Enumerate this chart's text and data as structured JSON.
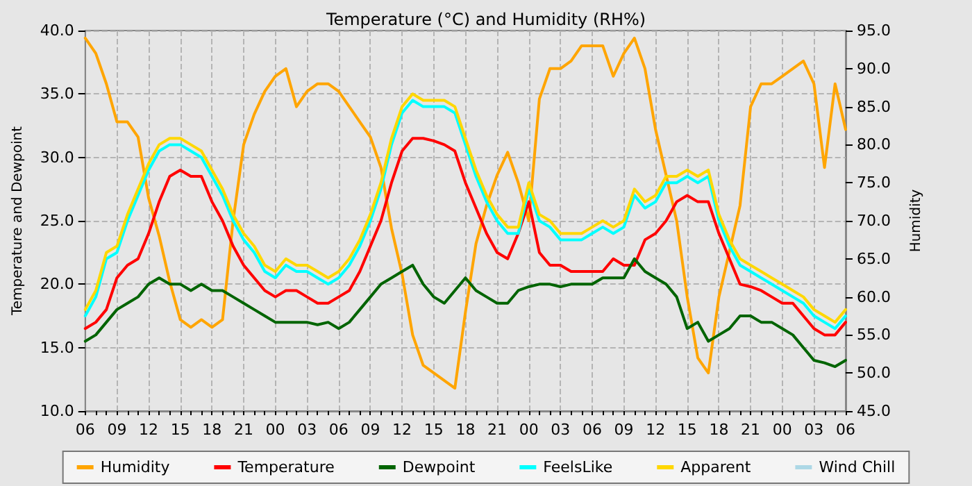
{
  "chart_data": {
    "type": "line",
    "title": "Temperature (°C) and Humidity (RH%)",
    "ylabel": "Temperature and Dewpoint",
    "y2label": "Humidity",
    "categories": [
      "06",
      null,
      null,
      "09",
      null,
      null,
      "12",
      null,
      null,
      "15",
      null,
      null,
      "18",
      null,
      null,
      "21",
      null,
      null,
      "00",
      null,
      null,
      "03",
      null,
      null,
      "06",
      null,
      null,
      "09",
      null,
      null,
      "12",
      null,
      null,
      "15",
      null,
      null,
      "18",
      null,
      null,
      "21",
      null,
      null,
      "00",
      null,
      null,
      "03",
      null,
      null,
      "06",
      null,
      null,
      "09",
      null,
      null,
      "12",
      null,
      null,
      "15",
      null,
      null,
      "18",
      null,
      null,
      "21",
      null,
      null,
      "00",
      null,
      null,
      "03",
      null,
      null,
      "06"
    ],
    "ylim": [
      10,
      40
    ],
    "yticks": [
      {
        "value": 10,
        "label": "10.0"
      },
      {
        "value": 15,
        "label": "15.0"
      },
      {
        "value": 20,
        "label": "20.0"
      },
      {
        "value": 25,
        "label": "25.0"
      },
      {
        "value": 30,
        "label": "30.0"
      },
      {
        "value": 35,
        "label": "35.0"
      },
      {
        "value": 40,
        "label": "40.0"
      }
    ],
    "y2lim": [
      45,
      95
    ],
    "y2ticks": [
      {
        "value": 45,
        "label": "45.0"
      },
      {
        "value": 50,
        "label": "50.0"
      },
      {
        "value": 55,
        "label": "55.0"
      },
      {
        "value": 60,
        "label": "60.0"
      },
      {
        "value": 65,
        "label": "65.0"
      },
      {
        "value": 70,
        "label": "70.0"
      },
      {
        "value": 75,
        "label": "75.0"
      },
      {
        "value": 80,
        "label": "80.0"
      },
      {
        "value": 85,
        "label": "85.0"
      },
      {
        "value": 90,
        "label": "90.0"
      },
      {
        "value": 95,
        "label": "95.0"
      }
    ],
    "grid": true,
    "legend": "bottom",
    "marker": "none",
    "line_style": "solid",
    "series": [
      {
        "name": "Humidity",
        "color": "#ffa500",
        "axis": "y2",
        "values": [
          94,
          92,
          88,
          83,
          83,
          81,
          73,
          68,
          62,
          57,
          56,
          57,
          56,
          57,
          70,
          80,
          84,
          87,
          89,
          90,
          85,
          87,
          88,
          88,
          87,
          85,
          83,
          81,
          77,
          69,
          63,
          55,
          51,
          50,
          49,
          48,
          58,
          67,
          72,
          76,
          79,
          75,
          70,
          86,
          90,
          90,
          91,
          93,
          93,
          93,
          89,
          92,
          94,
          90,
          82,
          76,
          70,
          60,
          52,
          50,
          60,
          66,
          72,
          85,
          88,
          88,
          89,
          90,
          91,
          88,
          77,
          88,
          82
        ]
      },
      {
        "name": "Temperature",
        "color": "#ff0000",
        "values": [
          16.5,
          17,
          18,
          20.5,
          21.5,
          22,
          24,
          26.5,
          28.5,
          29,
          28.5,
          28.5,
          26.5,
          25,
          23,
          21.5,
          20.5,
          19.5,
          19,
          19.5,
          19.5,
          19,
          18.5,
          18.5,
          19,
          19.5,
          21,
          23,
          25,
          28,
          30.5,
          31.5,
          31.5,
          31.3,
          31,
          30.5,
          28,
          26,
          24,
          22.5,
          22,
          24,
          26.5,
          22.5,
          21.5,
          21.5,
          21,
          21,
          21,
          21,
          22,
          21.5,
          21.5,
          23.5,
          24,
          25,
          26.5,
          27,
          26.5,
          26.5,
          24,
          22,
          20,
          19.8,
          19.5,
          19,
          18.5,
          18.5,
          17.5,
          16.5,
          16,
          16,
          17
        ]
      },
      {
        "name": "Dewpoint",
        "color": "#006400",
        "values": [
          15.5,
          16,
          17,
          18,
          18.5,
          19,
          20,
          20.5,
          20,
          20,
          19.5,
          20,
          19.5,
          19.5,
          19,
          18.5,
          18,
          17.5,
          17,
          17,
          17,
          17,
          16.8,
          17,
          16.5,
          17,
          18,
          19,
          20,
          20.5,
          21,
          21.5,
          20,
          19,
          18.5,
          19.5,
          20.5,
          19.5,
          19,
          18.5,
          18.5,
          19.5,
          19.8,
          20,
          20,
          19.8,
          20,
          20,
          20,
          20.5,
          20.5,
          20.5,
          22,
          21,
          20.5,
          20,
          19,
          16.5,
          17,
          15.5,
          16,
          16.5,
          17.5,
          17.5,
          17,
          17,
          16.5,
          16,
          15,
          14,
          13.8,
          13.5,
          14
        ]
      },
      {
        "name": "FeelsLike",
        "color": "#00ffff",
        "values": [
          17.5,
          19,
          22,
          22.5,
          25,
          27,
          29,
          30.5,
          31,
          31,
          30.5,
          30,
          28.5,
          27,
          25,
          23.5,
          22.5,
          21,
          20.5,
          21.5,
          21,
          21,
          20.5,
          20,
          20.5,
          21.5,
          23,
          25,
          27.5,
          31,
          33.5,
          34.5,
          34,
          34,
          34,
          33.5,
          31,
          28.5,
          26.5,
          25,
          24,
          24,
          27.5,
          25,
          24.5,
          23.5,
          23.5,
          23.5,
          24,
          24.5,
          24,
          24.5,
          27,
          26,
          26.5,
          28,
          28,
          28.5,
          28,
          28.5,
          25,
          23,
          21.5,
          21,
          20.5,
          20,
          19.5,
          19,
          18.5,
          17.5,
          17,
          16.5,
          17.5
        ]
      },
      {
        "name": "Apparent",
        "color": "#ffd700",
        "values": [
          18,
          19.5,
          22.5,
          23,
          25.5,
          27.5,
          29.5,
          31,
          31.5,
          31.5,
          31,
          30.5,
          29,
          27.5,
          25.5,
          24,
          23,
          21.5,
          21,
          22,
          21.5,
          21.5,
          21,
          20.5,
          21,
          22,
          23.5,
          25.5,
          28,
          31.5,
          34,
          35,
          34.5,
          34.5,
          34.5,
          34,
          31.5,
          29,
          27,
          25.5,
          24.5,
          24.5,
          28,
          25.5,
          25,
          24,
          24,
          24,
          24.5,
          25,
          24.5,
          25,
          27.5,
          26.5,
          27,
          28.5,
          28.5,
          29,
          28.5,
          29,
          25.5,
          23.5,
          22,
          21.5,
          21,
          20.5,
          20,
          19.5,
          19,
          18,
          17.5,
          17,
          18
        ]
      },
      {
        "name": "Wind Chill",
        "color": "#add8e6",
        "values": [
          null,
          null,
          null,
          null,
          null,
          null,
          null,
          null,
          null,
          null,
          null,
          null,
          null,
          null,
          null,
          null,
          null,
          null,
          null,
          null,
          null,
          null,
          null,
          null,
          null,
          null,
          null,
          null,
          null,
          null,
          null,
          null,
          null,
          null,
          null,
          null,
          null,
          null,
          null,
          null,
          null,
          null,
          null,
          null,
          null,
          null,
          null,
          null,
          null,
          null,
          null,
          null,
          null,
          null,
          null,
          null,
          null,
          null,
          null,
          null,
          null,
          null,
          null,
          null,
          null,
          null,
          null,
          null,
          null,
          null,
          null,
          null,
          null
        ]
      }
    ]
  }
}
